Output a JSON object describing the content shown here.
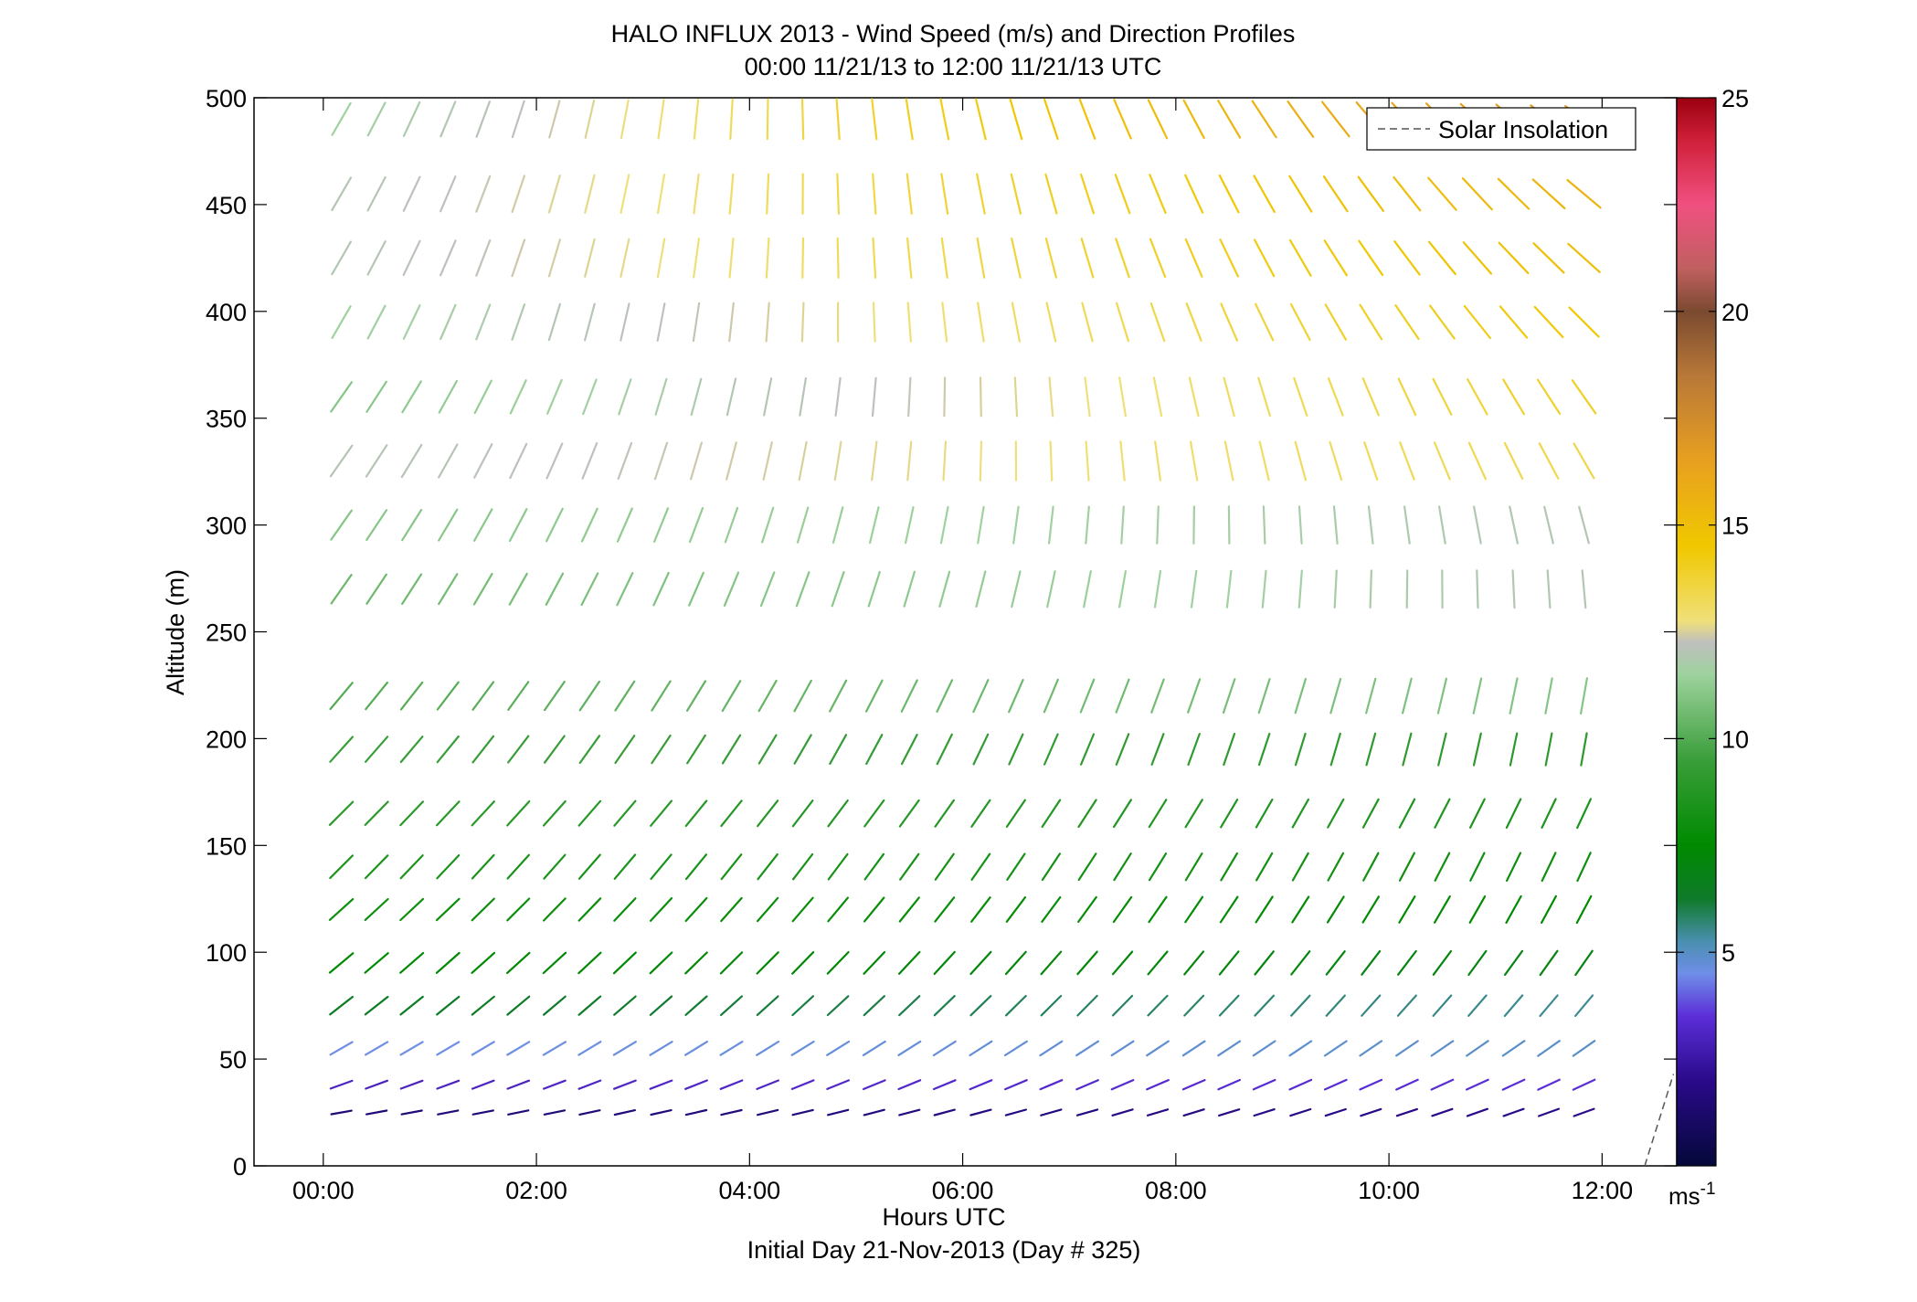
{
  "chart_data": {
    "type": "scatter",
    "title": "HALO INFLUX 2013 - Wind Speed (m/s) and Direction Profiles",
    "subtitle": "00:00 11/21/13 to 12:00 11/21/13  UTC",
    "xlabel": "Hours UTC",
    "xlabel2": "Initial Day 21-Nov-2013 (Day # 325)",
    "ylabel": "Altitude (m)",
    "xlim": [
      -0.65,
      12.7
    ],
    "ylim": [
      0,
      500
    ],
    "x_ticks": [
      0,
      2,
      4,
      6,
      8,
      10,
      12
    ],
    "x_tick_labels": [
      "00:00",
      "02:00",
      "04:00",
      "06:00",
      "08:00",
      "10:00",
      "12:00"
    ],
    "y_ticks": [
      0,
      50,
      100,
      150,
      200,
      250,
      300,
      350,
      400,
      450,
      500
    ],
    "y_tick_labels": [
      "0",
      "50",
      "100",
      "150",
      "200",
      "250",
      "300",
      "350",
      "400",
      "450",
      "500"
    ],
    "legend": {
      "entries": [
        "Solar Insolation"
      ],
      "position": "top-right"
    },
    "solar_insolation": {
      "x": [
        12.4,
        12.67
      ],
      "y": [
        0,
        43
      ]
    },
    "colorbar": {
      "range": [
        0,
        25
      ],
      "ticks": [
        5,
        10,
        15,
        20,
        25
      ],
      "tick_labels": [
        "5",
        "10",
        "15",
        "20",
        "25"
      ],
      "unit": "ms",
      "unit_sup": "-1"
    },
    "wind_field": {
      "times": [
        0.17,
        0.5,
        0.83,
        1.17,
        1.5,
        1.83,
        2.17,
        2.5,
        2.83,
        3.17,
        3.5,
        3.83,
        4.17,
        4.5,
        4.83,
        5.17,
        5.5,
        5.83,
        6.17,
        6.5,
        6.83,
        7.17,
        7.5,
        7.83,
        8.17,
        8.5,
        8.83,
        9.17,
        9.5,
        9.83,
        10.17,
        10.5,
        10.83,
        11.17,
        11.5,
        11.83
      ],
      "levels": [
        {
          "altitude": 490,
          "dir_start": 150,
          "dir_end": 235,
          "spd_start": 11.5,
          "spd_end": 17
        },
        {
          "altitude": 455,
          "dir_start": 150,
          "dir_end": 230,
          "spd_start": 12,
          "spd_end": 15.5
        },
        {
          "altitude": 425,
          "dir_start": 150,
          "dir_end": 228,
          "spd_start": 12,
          "spd_end": 15
        },
        {
          "altitude": 395,
          "dir_start": 150,
          "dir_end": 225,
          "spd_start": 11.5,
          "spd_end": 14.5
        },
        {
          "altitude": 360,
          "dir_start": 145,
          "dir_end": 215,
          "spd_start": 11,
          "spd_end": 14
        },
        {
          "altitude": 330,
          "dir_start": 145,
          "dir_end": 210,
          "spd_start": 12,
          "spd_end": 13.5
        },
        {
          "altitude": 300,
          "dir_start": 145,
          "dir_end": 195,
          "spd_start": 11,
          "spd_end": 12
        },
        {
          "altitude": 270,
          "dir_start": 145,
          "dir_end": 185,
          "spd_start": 10.5,
          "spd_end": 12
        },
        {
          "altitude": 220,
          "dir_start": 140,
          "dir_end": 170,
          "spd_start": 10,
          "spd_end": 11
        },
        {
          "altitude": 195,
          "dir_start": 138,
          "dir_end": 170,
          "spd_start": 9.5,
          "spd_end": 9
        },
        {
          "altitude": 165,
          "dir_start": 135,
          "dir_end": 155,
          "spd_start": 9,
          "spd_end": 8.5
        },
        {
          "altitude": 140,
          "dir_start": 135,
          "dir_end": 155,
          "spd_start": 8.5,
          "spd_end": 8
        },
        {
          "altitude": 120,
          "dir_start": 132,
          "dir_end": 152,
          "spd_start": 8,
          "spd_end": 7.5
        },
        {
          "altitude": 95,
          "dir_start": 130,
          "dir_end": 145,
          "spd_start": 7.5,
          "spd_end": 7
        },
        {
          "altitude": 75,
          "dir_start": 128,
          "dir_end": 140,
          "spd_start": 6.5,
          "spd_end": 5.5
        },
        {
          "altitude": 55,
          "dir_start": 120,
          "dir_end": 125,
          "spd_start": 4.5,
          "spd_end": 5
        },
        {
          "altitude": 38,
          "dir_start": 110,
          "dir_end": 115,
          "spd_start": 3,
          "spd_end": 3.5
        },
        {
          "altitude": 25,
          "dir_start": 100,
          "dir_end": 110,
          "spd_start": 1.5,
          "spd_end": 2
        }
      ]
    }
  }
}
